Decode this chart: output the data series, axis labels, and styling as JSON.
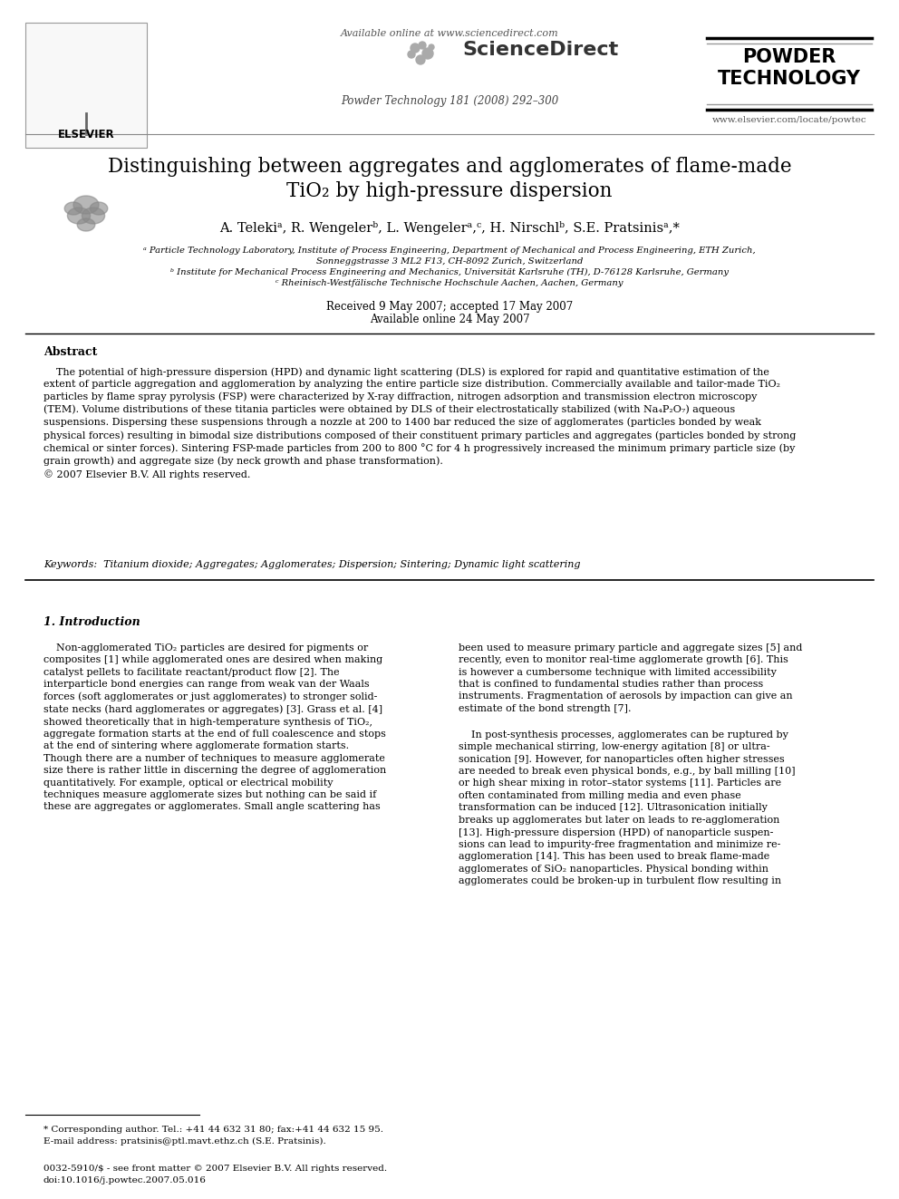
{
  "bg_color": "#ffffff",
  "title_line1": "Distinguishing between aggregates and agglomerates of flame-made",
  "title_line2": "TiO₂ by high-pressure dispersion",
  "authors": "A. Telekiᵃ, R. Wengelerᵇ, L. Wengelerᵃ,ᶜ, H. Nirschlᵇ, S.E. Pratsinisᵃ,*",
  "affil_a": "ᵃ Particle Technology Laboratory, Institute of Process Engineering, Department of Mechanical and Process Engineering, ETH Zurich,",
  "affil_a2": "Sonneggstrasse 3 ML2 F13, CH-8092 Zurich, Switzerland",
  "affil_b": "ᵇ Institute for Mechanical Process Engineering and Mechanics, Universität Karlsruhe (TH), D-76128 Karlsruhe, Germany",
  "affil_c": "ᶜ Rheinisch-Westfälische Technische Hochschule Aachen, Aachen, Germany",
  "received": "Received 9 May 2007; accepted 17 May 2007",
  "available": "Available online 24 May 2007",
  "abstract_title": "Abstract",
  "abstract_indent": "    The potential of high-pressure dispersion (HPD) and dynamic light scattering (DLS) is explored for rapid and quantitative estimation of the\nextent of particle aggregation and agglomeration by analyzing the entire particle size distribution. Commercially available and tailor-made TiO₂\nparticles by flame spray pyrolysis (FSP) were characterized by X-ray diffraction, nitrogen adsorption and transmission electron microscopy\n(TEM). Volume distributions of these titania particles were obtained by DLS of their electrostatically stabilized (with Na₄P₂O₇) aqueous\nsuspensions. Dispersing these suspensions through a nozzle at 200 to 1400 bar reduced the size of agglomerates (particles bonded by weak\nphysical forces) resulting in bimodal size distributions composed of their constituent primary particles and aggregates (particles bonded by strong\nchemical or sinter forces). Sintering FSP-made particles from 200 to 800 °C for 4 h progressively increased the minimum primary particle size (by\ngrain growth) and aggregate size (by neck growth and phase transformation).\n© 2007 Elsevier B.V. All rights reserved.",
  "keywords_line": "Keywords:  Titanium dioxide; Aggregates; Agglomerates; Dispersion; Sintering; Dynamic light scattering",
  "section1_title": "1. Introduction",
  "intro_col1": "    Non-agglomerated TiO₂ particles are desired for pigments or\ncomposites [1] while agglomerated ones are desired when making\ncatalyst pellets to facilitate reactant/product flow [2]. The\ninterparticle bond energies can range from weak van der Waals\nforces (soft agglomerates or just agglomerates) to stronger solid-\nstate necks (hard agglomerates or aggregates) [3]. Grass et al. [4]\nshowed theoretically that in high-temperature synthesis of TiO₂,\naggregate formation starts at the end of full coalescence and stops\nat the end of sintering where agglomerate formation starts.\nThough there are a number of techniques to measure agglomerate\nsize there is rather little in discerning the degree of agglomeration\nquantitatively. For example, optical or electrical mobility\ntechniques measure agglomerate sizes but nothing can be said if\nthese are aggregates or agglomerates. Small angle scattering has",
  "intro_col2_p1": "been used to measure primary particle and aggregate sizes [5] and\nrecently, even to monitor real-time agglomerate growth [6]. This\nis however a cumbersome technique with limited accessibility\nthat is confined to fundamental studies rather than process\ninstruments. Fragmentation of aerosols by impaction can give an\nestimate of the bond strength [7].",
  "intro_col2_p2": "    In post-synthesis processes, agglomerates can be ruptured by\nsimple mechanical stirring, low-energy agitation [8] or ultra-\nsonication [9]. However, for nanoparticles often higher stresses\nare needed to break even physical bonds, e.g., by ball milling [10]\nor high shear mixing in rotor–stator systems [11]. Particles are\noften contaminated from milling media and even phase\ntransformation can be induced [12]. Ultrasonication initially\nbreaks up agglomerates but later on leads to re-agglomeration\n[13]. High-pressure dispersion (HPD) of nanoparticle suspen-\nsions can lead to impurity-free fragmentation and minimize re-\nagglomeration [14]. This has been used to break flame-made\nagglomerates of SiO₂ nanoparticles. Physical bonding within\nagglomerates could be broken-up in turbulent flow resulting in",
  "footnote_star": "* Corresponding author. Tel.: +41 44 632 31 80; fax:+41 44 632 15 95.",
  "footnote_email": "E-mail address: pratsinis@ptl.mavt.ethz.ch (S.E. Pratsinis).",
  "footer_issn": "0032-5910/$ - see front matter © 2007 Elsevier B.V. All rights reserved.",
  "footer_doi": "doi:10.1016/j.powtec.2007.05.016",
  "journal_info": "Powder Technology 181 (2008) 292–300",
  "available_online": "Available online at www.sciencedirect.com",
  "journal_url": "www.elsevier.com/locate/powtec",
  "elsevier_text": "ELSEVIER"
}
